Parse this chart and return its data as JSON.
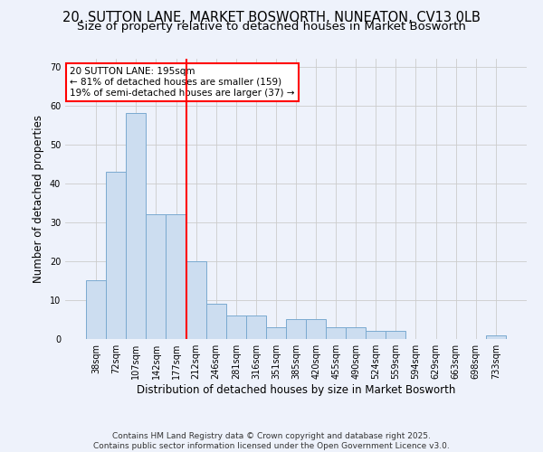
{
  "title_line1": "20, SUTTON LANE, MARKET BOSWORTH, NUNEATON, CV13 0LB",
  "title_line2": "Size of property relative to detached houses in Market Bosworth",
  "xlabel": "Distribution of detached houses by size in Market Bosworth",
  "ylabel": "Number of detached properties",
  "bar_labels": [
    "38sqm",
    "72sqm",
    "107sqm",
    "142sqm",
    "177sqm",
    "212sqm",
    "246sqm",
    "281sqm",
    "316sqm",
    "351sqm",
    "385sqm",
    "420sqm",
    "455sqm",
    "490sqm",
    "524sqm",
    "559sqm",
    "594sqm",
    "629sqm",
    "663sqm",
    "698sqm",
    "733sqm"
  ],
  "bar_values": [
    15,
    43,
    58,
    32,
    32,
    20,
    9,
    6,
    6,
    3,
    5,
    5,
    3,
    3,
    2,
    2,
    0,
    0,
    0,
    0,
    1
  ],
  "bar_color": "#ccddf0",
  "bar_edgecolor": "#7aaad0",
  "vline_color": "red",
  "vline_x_index": 4,
  "annotation_text": "20 SUTTON LANE: 195sqm\n← 81% of detached houses are smaller (159)\n19% of semi-detached houses are larger (37) →",
  "annotation_box_color": "white",
  "annotation_box_edgecolor": "red",
  "ylim": [
    0,
    72
  ],
  "yticks": [
    0,
    10,
    20,
    30,
    40,
    50,
    60,
    70
  ],
  "footnote": "Contains HM Land Registry data © Crown copyright and database right 2025.\nContains public sector information licensed under the Open Government Licence v3.0.",
  "bg_color": "#eef2fb",
  "title_fontsize": 10.5,
  "subtitle_fontsize": 9.5,
  "axis_label_fontsize": 8.5,
  "tick_fontsize": 7,
  "annotation_fontsize": 7.5,
  "footnote_fontsize": 6.5
}
